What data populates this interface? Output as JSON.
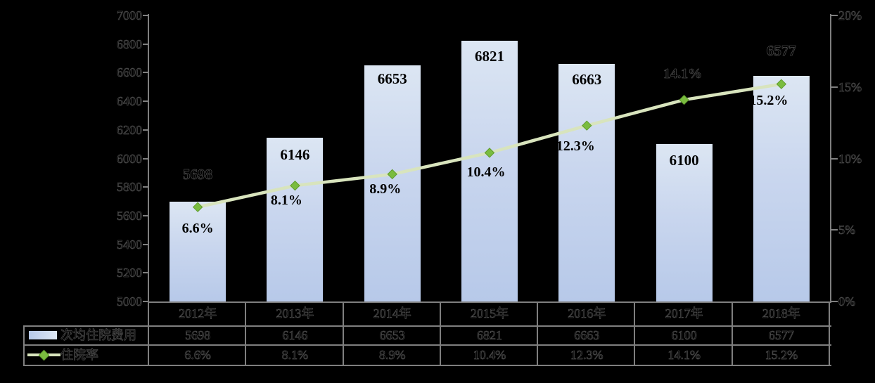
{
  "chart_data": {
    "type": "bar+line",
    "title": "",
    "categories": [
      "2012年",
      "2013年",
      "2014年",
      "2015年",
      "2016年",
      "2017年",
      "2018年"
    ],
    "series": [
      {
        "name": "次均住院费用",
        "type": "bar",
        "axis": "left",
        "values": [
          5698,
          6146,
          6653,
          6821,
          6663,
          6100,
          6577
        ],
        "labels": [
          "5698",
          "6146",
          "6653",
          "6821",
          "6663",
          "6100",
          "6577"
        ],
        "bar_color_top": "#dce6f3",
        "bar_color_bottom": "#b7c9e9"
      },
      {
        "name": "住院率",
        "type": "line",
        "axis": "right",
        "values": [
          6.6,
          8.1,
          8.9,
          10.4,
          12.3,
          14.1,
          15.2
        ],
        "labels": [
          "6.6%",
          "8.1%",
          "8.9%",
          "10.4%",
          "12.3%",
          "14.1%",
          "15.2%"
        ],
        "line_color": "#d8e4bd",
        "marker_color": "#7abc3f"
      }
    ],
    "left_axis": {
      "min": 5000,
      "max": 7000,
      "step": 200,
      "tick_labels": [
        "7000",
        "6800",
        "6600",
        "6400",
        "6200",
        "6000",
        "5800",
        "5600",
        "5400",
        "5200",
        "5000"
      ]
    },
    "right_axis": {
      "min": 0,
      "max": 20,
      "step": 5,
      "tick_labels": [
        "20%",
        "15%",
        "10%",
        "5%",
        "0%"
      ]
    },
    "grid": false,
    "legend_position": "bottom-table",
    "background_color": "#000000",
    "axis_line_color": "#7f7f7f"
  },
  "data_table": {
    "rows": [
      {
        "label": "次均住院费用",
        "key": "bar-swatch",
        "values": [
          "5698",
          "6146",
          "6653",
          "6821",
          "6663",
          "6100",
          "6577"
        ]
      },
      {
        "label": "住院率",
        "key": "line-swatch",
        "values": [
          "6.6%",
          "8.1%",
          "8.9%",
          "10.4%",
          "12.3%",
          "14.1%",
          "15.2%"
        ]
      }
    ]
  }
}
